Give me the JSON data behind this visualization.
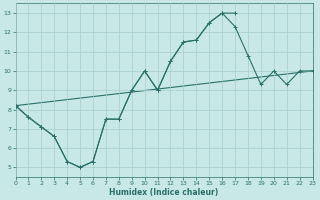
{
  "xlabel": "Humidex (Indice chaleur)",
  "bg_color": "#c8e8e8",
  "grid_color": "#a8cece",
  "line_color": "#2a7068",
  "xlim": [
    0,
    23
  ],
  "ylim": [
    4.5,
    13.5
  ],
  "xticks": [
    0,
    1,
    2,
    3,
    4,
    5,
    6,
    7,
    8,
    9,
    10,
    11,
    12,
    13,
    14,
    15,
    16,
    17,
    18,
    19,
    20,
    21,
    22,
    23
  ],
  "yticks": [
    5,
    6,
    7,
    8,
    9,
    10,
    11,
    12,
    13
  ],
  "line1_x": [
    0,
    1,
    2,
    3,
    4,
    5,
    6,
    7,
    8,
    9,
    10,
    11,
    12,
    13,
    14,
    15,
    16,
    17
  ],
  "line1_y": [
    8.2,
    7.6,
    7.1,
    6.6,
    5.3,
    5.0,
    5.3,
    7.5,
    7.5,
    9.0,
    10.0,
    9.0,
    10.5,
    11.5,
    11.6,
    12.5,
    13.0,
    13.0
  ],
  "line2_x": [
    0,
    1,
    2,
    3,
    4,
    5,
    6,
    7,
    8,
    9,
    10,
    11,
    12,
    13,
    14,
    15,
    16,
    17,
    18,
    19,
    20,
    21,
    22,
    23
  ],
  "line2_y": [
    8.2,
    7.6,
    7.1,
    6.6,
    5.3,
    5.0,
    5.3,
    7.5,
    7.5,
    9.0,
    10.0,
    9.0,
    10.5,
    11.5,
    11.6,
    12.5,
    13.0,
    12.3,
    10.8,
    9.3,
    10.0,
    9.3,
    10.0,
    10.0
  ],
  "line3_x": [
    0,
    23
  ],
  "line3_y": [
    8.2,
    10.0
  ]
}
